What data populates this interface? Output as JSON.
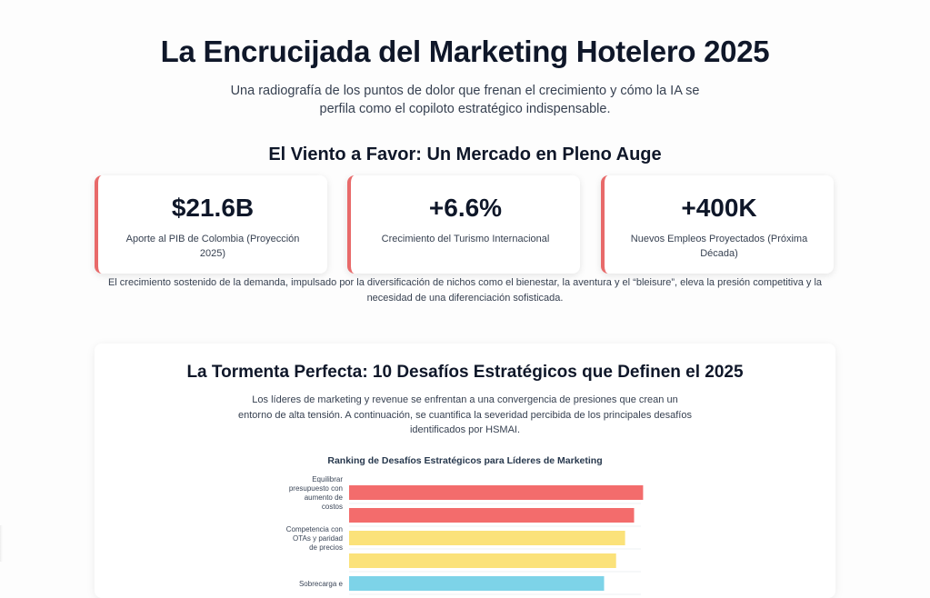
{
  "header": {
    "title": "La Encrucijada del Marketing Hotelero 2025",
    "subtitle": "Una radiografía de los puntos de dolor que frenan el crecimiento y cómo la IA se perfila como el copiloto estratégico indispensable."
  },
  "market": {
    "section_title": "El Viento a Favor: Un Mercado en Pleno Auge",
    "stats": [
      {
        "value": "$21.6B",
        "label": "Aporte al PIB de Colombia (Proyección 2025)"
      },
      {
        "value": "+6.6%",
        "label": "Crecimiento del Turismo Internacional"
      },
      {
        "value": "+400K",
        "label": "Nuevos Empleos Proyectados (Próxima Década)"
      }
    ],
    "note": "El crecimiento sostenido de la demanda, impulsado por la diversificación de nichos como el bienestar, la aventura y el “bleisure”, eleva la presión competitiva y la necesidad de una diferenciación sofisticada."
  },
  "challenges": {
    "title": "La Tormenta Perfecta: 10 Desafíos Estratégicos que Definen el 2025",
    "description": "Los líderes de marketing y revenue se enfrentan a una convergencia de presiones que crean un entorno de alta tensión. A continuación, se cuantifica la severidad percibida de los principales desafíos identificados por HSMAI."
  },
  "chart_data": {
    "type": "bar",
    "orientation": "horizontal",
    "title": "Ranking de Desafíos Estratégicos para Líderes de Marketing",
    "categories": [
      "Equilibrar presupuesto con aumento de costos",
      "",
      "Competencia con OTAs y paridad de precios",
      "",
      "Sobrecarga e"
    ],
    "values": [
      9.8,
      9.5,
      9.2,
      8.9,
      8.5
    ],
    "xlim": [
      0,
      10
    ],
    "bar_colors": [
      "#f36c6c",
      "#f36c6c",
      "#fbe27a",
      "#fbe27a",
      "#7dd3e8"
    ]
  }
}
